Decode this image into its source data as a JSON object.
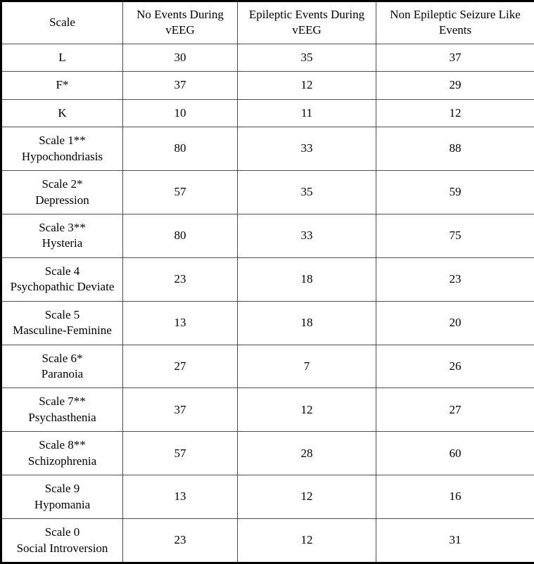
{
  "colors": {
    "background": "#ffffff",
    "text": "#000000",
    "outer_border": "#000000",
    "grid_line": "#4d4d4d"
  },
  "table": {
    "columns": [
      "Scale",
      "No Events During vEEG",
      "Epileptic Events During vEEG",
      "Non Epileptic Seizure Like Events"
    ],
    "rows": [
      {
        "label": "L",
        "sublabel": "",
        "values": [
          "30",
          "35",
          "37"
        ]
      },
      {
        "label": "F*",
        "sublabel": "",
        "values": [
          "37",
          "12",
          "29"
        ]
      },
      {
        "label": "K",
        "sublabel": "",
        "values": [
          "10",
          "11",
          "12"
        ]
      },
      {
        "label": "Scale 1**",
        "sublabel": "Hypochondriasis",
        "values": [
          "80",
          "33",
          "88"
        ]
      },
      {
        "label": "Scale 2*",
        "sublabel": "Depression",
        "values": [
          "57",
          "35",
          "59"
        ]
      },
      {
        "label": "Scale 3**",
        "sublabel": "Hysteria",
        "values": [
          "80",
          "33",
          "75"
        ]
      },
      {
        "label": "Scale 4",
        "sublabel": "Psychopathic Deviate",
        "values": [
          "23",
          "18",
          "23"
        ]
      },
      {
        "label": "Scale 5",
        "sublabel": "Masculine-Feminine",
        "values": [
          "13",
          "18",
          "20"
        ]
      },
      {
        "label": "Scale 6*",
        "sublabel": "Paranoia",
        "values": [
          "27",
          "7",
          "26"
        ]
      },
      {
        "label": "Scale 7**",
        "sublabel": "Psychasthenia",
        "values": [
          "37",
          "12",
          "27"
        ]
      },
      {
        "label": "Scale 8**",
        "sublabel": "Schizophrenia",
        "values": [
          "57",
          "28",
          "60"
        ]
      },
      {
        "label": "Scale 9",
        "sublabel": "Hypomania",
        "values": [
          "13",
          "12",
          "16"
        ]
      },
      {
        "label": "Scale 0",
        "sublabel": "Social Introversion",
        "values": [
          "23",
          "12",
          "31"
        ]
      }
    ]
  }
}
